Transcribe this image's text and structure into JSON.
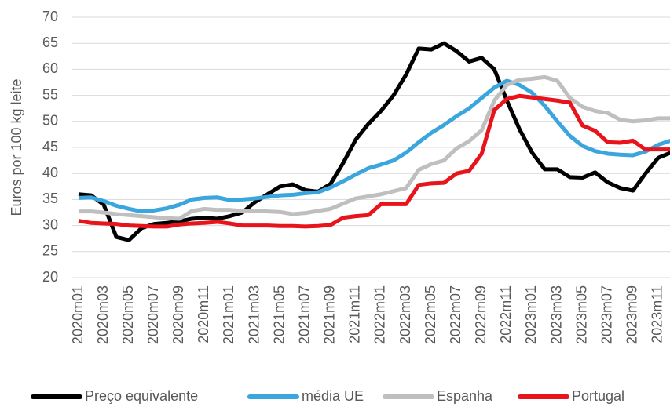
{
  "chart_data": {
    "type": "line",
    "ylabel": "Euros por 100 kg leite",
    "categories": [
      "2020m01",
      null,
      "2020m03",
      null,
      "2020m05",
      null,
      "2020m07",
      null,
      "2020m09",
      null,
      "2020m11",
      null,
      "2021m01",
      null,
      "2021m03",
      null,
      "2021m05",
      null,
      "2021m07",
      null,
      "2021m09",
      null,
      "2021m11",
      null,
      "2022m01",
      null,
      "2022m03",
      null,
      "2022m05",
      null,
      "2022m07",
      null,
      "2022m09",
      null,
      "2022m11",
      null,
      "2023m01",
      null,
      "2023m03",
      null,
      "2023m05",
      null,
      "2023m07",
      null,
      "2023m09",
      null,
      "2023m11",
      null
    ],
    "series": [
      {
        "name": "Preço equivalente",
        "color": "#000000",
        "values": [
          36,
          35.8,
          34,
          27.8,
          27.2,
          29.5,
          30.3,
          30.5,
          30.8,
          31.3,
          31.5,
          31.3,
          31.8,
          32.5,
          34.5,
          36,
          37.5,
          37.9,
          36.8,
          36.5,
          38,
          42,
          46.5,
          49.5,
          52,
          55,
          59,
          64,
          63.8,
          65,
          63.5,
          61.5,
          62.2,
          60,
          54,
          48.5,
          44,
          40.8,
          40.8,
          39.3,
          39.2,
          40.2,
          38.3,
          37.2,
          36.7,
          40,
          43,
          44
        ]
      },
      {
        "name": "média UE",
        "color": "#3aa6dd",
        "values": [
          35.3,
          35.4,
          34.7,
          33.8,
          33.2,
          32.7,
          32.9,
          33.3,
          34.0,
          35.0,
          35.3,
          35.4,
          34.9,
          35.0,
          35.2,
          35.5,
          35.8,
          35.9,
          36.2,
          36.4,
          37.3,
          38.5,
          39.8,
          41.0,
          41.7,
          42.5,
          44.0,
          46.0,
          47.8,
          49.3,
          51.0,
          52.5,
          54.5,
          56.5,
          57.8,
          57.0,
          55.5,
          53.0,
          50.0,
          47.2,
          45.3,
          44.3,
          43.8,
          43.6,
          43.5,
          44.2,
          45.5,
          46.3
        ]
      },
      {
        "name": "Espanha",
        "color": "#bfbfbf",
        "values": [
          32.7,
          32.7,
          32.5,
          32.2,
          32.0,
          31.8,
          31.6,
          31.4,
          31.3,
          32.8,
          33.2,
          33.0,
          33.0,
          32.8,
          32.8,
          32.7,
          32.6,
          32.2,
          32.4,
          32.8,
          33.2,
          34.2,
          35.2,
          35.6,
          36.0,
          36.6,
          37.2,
          40.7,
          41.8,
          42.5,
          44.8,
          46.2,
          48.3,
          54.0,
          57.0,
          58.0,
          58.2,
          58.5,
          57.8,
          54.5,
          52.8,
          52.0,
          51.6,
          50.3,
          50.0,
          50.2,
          50.6,
          50.6
        ]
      },
      {
        "name": "Portugal",
        "color": "#e8141c",
        "values": [
          30.9,
          30.5,
          30.4,
          30.3,
          30.0,
          29.9,
          29.8,
          29.8,
          30.2,
          30.4,
          30.5,
          30.7,
          30.4,
          30.0,
          30.0,
          30.0,
          29.9,
          29.9,
          29.8,
          29.9,
          30.1,
          31.5,
          31.8,
          32.0,
          34.1,
          34.1,
          34.1,
          37.8,
          38.1,
          38.2,
          40.0,
          40.5,
          43.8,
          52.2,
          54.3,
          54.9,
          54.6,
          54.3,
          54.0,
          53.6,
          49.2,
          48.2,
          46.0,
          45.9,
          46.3,
          44.6,
          44.6,
          44.6
        ]
      }
    ],
    "ylim": [
      20,
      70
    ],
    "yticks": [
      20,
      25,
      30,
      35,
      40,
      45,
      50,
      55,
      60,
      65,
      70
    ],
    "grid": true,
    "legend": "bottom"
  }
}
